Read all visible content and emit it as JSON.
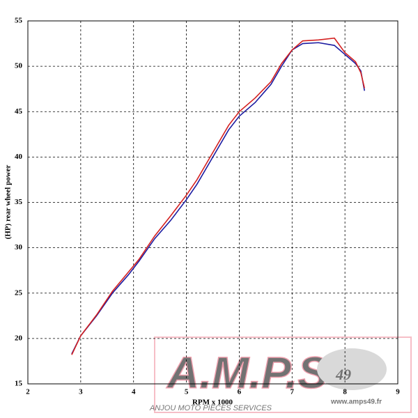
{
  "chart_data": {
    "type": "line",
    "x_label": "RPM x 1000",
    "y_label": "(HP) rear wheel power",
    "x": [
      2.83,
      3.0,
      3.3,
      3.6,
      3.9,
      4.1,
      4.4,
      4.7,
      5.0,
      5.2,
      5.5,
      5.8,
      6.0,
      6.3,
      6.6,
      6.8,
      7.0,
      7.2,
      7.5,
      7.8,
      8.0,
      8.2,
      8.3,
      8.37
    ],
    "series": [
      {
        "color": "#1a1aa0",
        "values": [
          18.3,
          20.3,
          22.5,
          25.0,
          27.0,
          28.5,
          31.0,
          33.0,
          35.3,
          37.0,
          40.0,
          43.0,
          44.5,
          46.0,
          48.0,
          50.0,
          51.8,
          52.5,
          52.6,
          52.3,
          51.3,
          50.3,
          49.5,
          47.3
        ]
      },
      {
        "color": "#d42020",
        "values": [
          18.2,
          20.3,
          22.6,
          25.2,
          27.3,
          28.7,
          31.3,
          33.5,
          35.8,
          37.5,
          40.5,
          43.5,
          45.0,
          46.5,
          48.3,
          50.3,
          51.8,
          52.8,
          52.9,
          53.1,
          51.5,
          50.5,
          49.3,
          47.6
        ]
      }
    ],
    "xlim": [
      2,
      9
    ],
    "xticks": [
      2,
      3,
      4,
      5,
      6,
      7,
      8,
      9
    ],
    "ylim": [
      15,
      55
    ],
    "yticks": [
      15,
      20,
      25,
      30,
      35,
      40,
      45,
      50,
      55
    ],
    "grid": true,
    "watermark": {
      "logo": "A.M.P.S",
      "number": "49",
      "tagline": "ANJOU MOTO PIECES SERVICES",
      "url": "www.amps49.fr"
    }
  }
}
